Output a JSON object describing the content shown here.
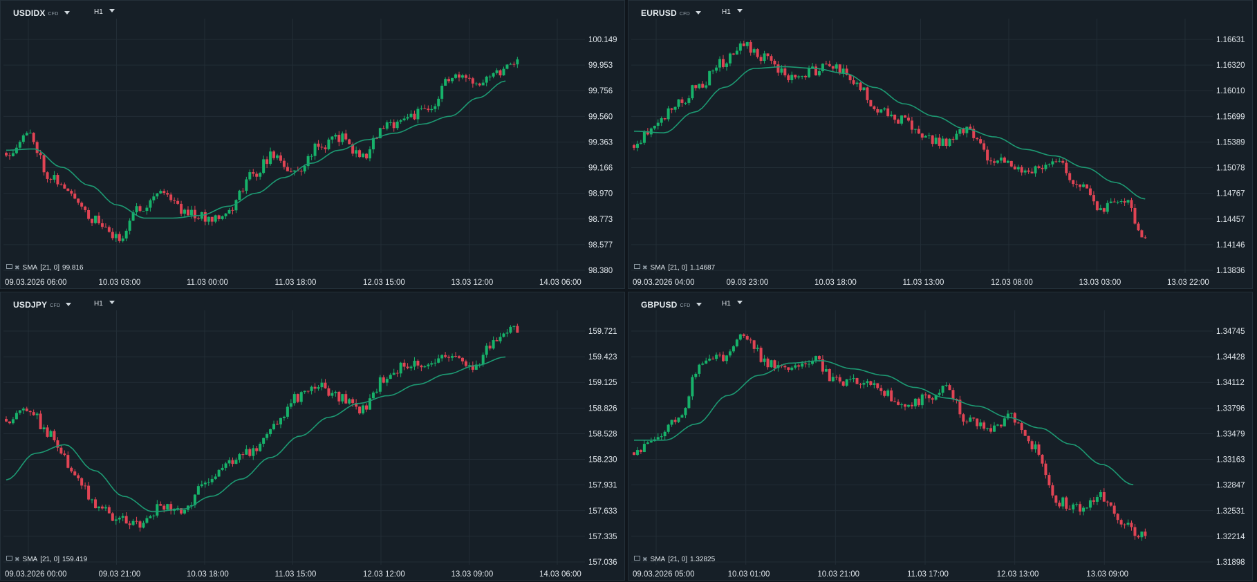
{
  "indicator_prefix": "SMA",
  "indicator_params": "[21, 0]",
  "sma_color": "#1d9a73",
  "up_color": "#17b26a",
  "down_color": "#e04454",
  "grid_color": "#222d36",
  "chart_data": [
    {
      "type": "candlestick",
      "symbol": "USDIDX",
      "badge": "CFD",
      "timeframe": "H1",
      "sma_value": "99.816",
      "y_ticks": [
        "100.149",
        "99.953",
        "99.756",
        "99.560",
        "99.363",
        "99.166",
        "98.970",
        "98.773",
        "98.577",
        "98.380"
      ],
      "ylim": [
        98.38,
        100.149
      ],
      "x_ticks": [
        "09.03.2026  06:00",
        "10.03  03:00",
        "11.03  00:00",
        "11.03  18:00",
        "12.03  15:00",
        "13.03  12:00",
        "14.03  06:00"
      ],
      "anchors": [
        99.28,
        99.42,
        99.1,
        98.95,
        98.76,
        98.62,
        98.86,
        98.99,
        98.84,
        98.78,
        98.83,
        99.1,
        99.26,
        99.12,
        99.32,
        99.4,
        99.25,
        99.47,
        99.56,
        99.6,
        99.86,
        99.82,
        99.9,
        100.0
      ],
      "sma_anchors": [
        99.3,
        99.31,
        99.17,
        99.03,
        98.88,
        98.78,
        98.78,
        98.8,
        98.87,
        98.97,
        99.09,
        99.2,
        99.3,
        99.38,
        99.43,
        99.5,
        99.56,
        99.7,
        99.83
      ],
      "sma_fraction": 0.84,
      "seed": 11
    },
    {
      "type": "candlestick",
      "symbol": "EURUSD",
      "badge": "CFD",
      "timeframe": "H1",
      "sma_value": "1.14687",
      "y_ticks": [
        "1.16631",
        "1.16320",
        "1.16010",
        "1.15699",
        "1.15389",
        "1.15078",
        "1.14767",
        "1.14457",
        "1.14146",
        "1.13836"
      ],
      "ylim": [
        1.13836,
        1.16631
      ],
      "x_ticks": [
        "09.03.2026  04:00",
        "09.03  23:00",
        "10.03  18:00",
        "11.03  13:00",
        "12.03  08:00",
        "13.03  03:00",
        "13.03  22:00"
      ],
      "anchors": [
        1.1535,
        1.1562,
        1.1585,
        1.161,
        1.1635,
        1.1655,
        1.164,
        1.1615,
        1.1625,
        1.163,
        1.1608,
        1.158,
        1.1565,
        1.1545,
        1.1538,
        1.1555,
        1.152,
        1.151,
        1.1505,
        1.1515,
        1.149,
        1.146,
        1.147,
        1.1425
      ],
      "sma_anchors": [
        1.1552,
        1.155,
        1.1575,
        1.1605,
        1.1628,
        1.163,
        1.1628,
        1.1622,
        1.1605,
        1.1585,
        1.157,
        1.1555,
        1.1545,
        1.153,
        1.1522,
        1.1508,
        1.149,
        1.147
      ],
      "sma_fraction": 0.86,
      "seed": 23
    },
    {
      "type": "candlestick",
      "symbol": "USDJPY",
      "badge": "CFD",
      "timeframe": "H1",
      "sma_value": "159.419",
      "y_ticks": [
        "159.721",
        "159.423",
        "159.125",
        "158.826",
        "158.528",
        "158.230",
        "157.931",
        "157.633",
        "157.335",
        "157.036"
      ],
      "ylim": [
        157.036,
        159.721
      ],
      "x_ticks": [
        "09.03.2026  00:00",
        "09.03  21:00",
        "10.03  18:00",
        "11.03  15:00",
        "12.03  12:00",
        "13.03  09:00",
        "14.03  06:00"
      ],
      "anchors": [
        158.7,
        158.8,
        158.5,
        158.1,
        157.7,
        157.55,
        157.45,
        157.7,
        157.6,
        158.0,
        158.2,
        158.3,
        158.6,
        158.95,
        159.1,
        158.95,
        158.8,
        159.15,
        159.35,
        159.3,
        159.45,
        159.3,
        159.6,
        159.75
      ],
      "sma_anchors": [
        157.99,
        158.3,
        158.4,
        158.1,
        157.8,
        157.62,
        157.65,
        157.8,
        158.0,
        158.25,
        158.5,
        158.72,
        158.88,
        158.97,
        159.1,
        159.22,
        159.32,
        159.42
      ],
      "sma_fraction": 0.84,
      "seed": 37
    },
    {
      "type": "candlestick",
      "symbol": "GBPUSD",
      "badge": "CFD",
      "timeframe": "H1",
      "sma_value": "1.32825",
      "y_ticks": [
        "1.34745",
        "1.34428",
        "1.34112",
        "1.33796",
        "1.33479",
        "1.33163",
        "1.32847",
        "1.32531",
        "1.32214",
        "1.31898"
      ],
      "ylim": [
        1.31898,
        1.34745
      ],
      "x_ticks": [
        "09.03.2026  05:00",
        "10.03  01:00",
        "10.03  21:00",
        "11.03  17:00",
        "12.03  13:00",
        "13.03  09:00"
      ],
      "anchors": [
        1.3325,
        1.3345,
        1.337,
        1.3435,
        1.344,
        1.347,
        1.3435,
        1.3425,
        1.344,
        1.3415,
        1.341,
        1.3405,
        1.338,
        1.339,
        1.3405,
        1.3365,
        1.3355,
        1.3368,
        1.333,
        1.3265,
        1.3255,
        1.327,
        1.3235,
        1.322
      ],
      "sma_anchors": [
        1.334,
        1.334,
        1.336,
        1.3395,
        1.342,
        1.3435,
        1.3438,
        1.3428,
        1.342,
        1.3405,
        1.3392,
        1.3382,
        1.3368,
        1.3355,
        1.3335,
        1.331,
        1.3285
      ],
      "sma_fraction": 0.84,
      "seed": 53
    }
  ]
}
